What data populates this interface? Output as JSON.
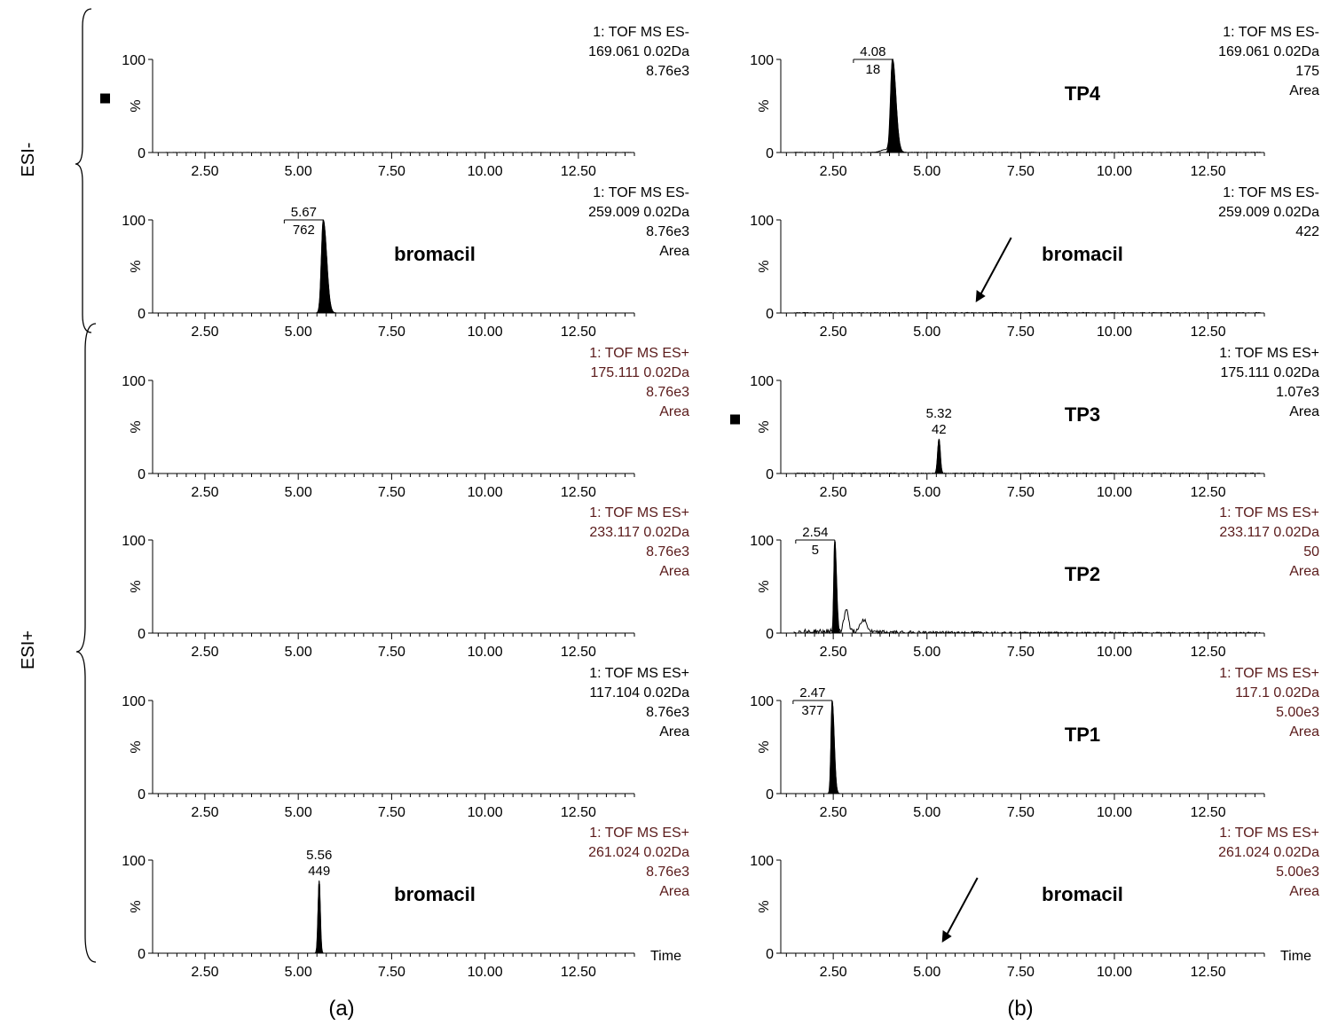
{
  "figure": {
    "panel_labels": [
      "(a)",
      "(b)"
    ],
    "mode_labels": [
      "ESI-",
      "ESI+"
    ]
  },
  "chart_data": [
    {
      "type": "line",
      "panel": "a",
      "row": 0,
      "header": [
        "1: TOF MS ES-",
        "169.061 0.02Da",
        "8.76e3"
      ],
      "header_color": "#000000",
      "ylabel": "%",
      "yticks": [
        "0",
        "100"
      ],
      "xlim": [
        1.1,
        14.0
      ],
      "xticks": [
        2.5,
        5.0,
        7.5,
        10.0,
        12.5
      ],
      "xtick_labels": [
        "2.50",
        "5.00",
        "7.50",
        "10.00",
        "12.50"
      ],
      "peaks": [],
      "noise": 0.2,
      "compound": "",
      "marker": true,
      "arrow": false,
      "time_label": ""
    },
    {
      "type": "line",
      "panel": "a",
      "row": 1,
      "header": [
        "1: TOF MS ES-",
        "259.009 0.02Da",
        "8.76e3",
        "Area"
      ],
      "header_color": "#000000",
      "ylabel": "%",
      "yticks": [
        "0",
        "100"
      ],
      "xlim": [
        1.1,
        14.0
      ],
      "xticks": [
        2.5,
        5.0,
        7.5,
        10.0,
        12.5
      ],
      "xtick_labels": [
        "2.50",
        "5.00",
        "7.50",
        "10.00",
        "12.50"
      ],
      "peaks": [
        {
          "rt": 5.67,
          "height": 100,
          "width": 0.1,
          "tail": true,
          "labels": [
            "5.67",
            "762"
          ],
          "bracket": true
        }
      ],
      "noise": 0,
      "compound": "bromacil",
      "marker": false,
      "arrow": false,
      "time_label": ""
    },
    {
      "type": "line",
      "panel": "a",
      "row": 2,
      "header": [
        "1: TOF MS ES+",
        "175.111 0.02Da",
        "8.76e3",
        "Area"
      ],
      "header_color": "#5a1a1a",
      "ylabel": "%",
      "yticks": [
        "0",
        "100"
      ],
      "xlim": [
        1.1,
        14.0
      ],
      "xticks": [
        2.5,
        5.0,
        7.5,
        10.0,
        12.5
      ],
      "xtick_labels": [
        "2.50",
        "5.00",
        "7.50",
        "10.00",
        "12.50"
      ],
      "peaks": [],
      "noise": 0,
      "compound": "",
      "marker": false,
      "arrow": false,
      "time_label": ""
    },
    {
      "type": "line",
      "panel": "a",
      "row": 3,
      "header": [
        "1: TOF MS ES+",
        "233.117 0.02Da",
        "8.76e3",
        "Area"
      ],
      "header_color": "#5a1a1a",
      "ylabel": "%",
      "yticks": [
        "0",
        "100"
      ],
      "xlim": [
        1.1,
        14.0
      ],
      "xticks": [
        2.5,
        5.0,
        7.5,
        10.0,
        12.5
      ],
      "xtick_labels": [
        "2.50",
        "5.00",
        "7.50",
        "10.00",
        "12.50"
      ],
      "peaks": [],
      "noise": 0,
      "compound": "",
      "marker": false,
      "arrow": false,
      "time_label": ""
    },
    {
      "type": "line",
      "panel": "a",
      "row": 4,
      "header": [
        "1: TOF MS ES+",
        "117.104 0.02Da",
        "8.76e3",
        "Area"
      ],
      "header_color": "#000000",
      "ylabel": "%",
      "yticks": [
        "0",
        "100"
      ],
      "xlim": [
        1.1,
        14.0
      ],
      "xticks": [
        2.5,
        5.0,
        7.5,
        10.0,
        12.5
      ],
      "xtick_labels": [
        "2.50",
        "5.00",
        "7.50",
        "10.00",
        "12.50"
      ],
      "peaks": [],
      "noise": 0,
      "compound": "",
      "marker": false,
      "arrow": false,
      "time_label": ""
    },
    {
      "type": "line",
      "panel": "a",
      "row": 5,
      "header": [
        "1: TOF MS ES+",
        "261.024 0.02Da",
        "8.76e3",
        "Area"
      ],
      "header_color": "#5a1a1a",
      "ylabel": "%",
      "yticks": [
        "0",
        "100"
      ],
      "xlim": [
        1.1,
        14.0
      ],
      "xticks": [
        2.5,
        5.0,
        7.5,
        10.0,
        12.5
      ],
      "xtick_labels": [
        "2.50",
        "5.00",
        "7.50",
        "10.00",
        "12.50"
      ],
      "peaks": [
        {
          "rt": 5.56,
          "height": 78,
          "width": 0.06,
          "tail": false,
          "labels": [
            "5.56",
            "449"
          ],
          "bracket": false
        }
      ],
      "noise": 0,
      "compound": "bromacil",
      "marker": false,
      "arrow": false,
      "time_label": "Time"
    },
    {
      "type": "line",
      "panel": "b",
      "row": 0,
      "header": [
        "1: TOF MS ES-",
        "169.061 0.02Da",
        "175",
        "Area"
      ],
      "header_color": "#000000",
      "ylabel": "%",
      "yticks": [
        "0",
        "100"
      ],
      "xlim": [
        1.1,
        14.0
      ],
      "xticks": [
        2.5,
        5.0,
        7.5,
        10.0,
        12.5
      ],
      "xtick_labels": [
        "2.50",
        "5.00",
        "7.50",
        "10.00",
        "12.50"
      ],
      "peaks": [
        {
          "rt": 4.08,
          "height": 100,
          "width": 0.1,
          "tail": true,
          "labels": [
            "4.08",
            "18"
          ],
          "bracket": true
        },
        {
          "rt": 3.9,
          "height": 3,
          "width": 0.25,
          "tail": false,
          "labels": [],
          "bracket": false
        }
      ],
      "noise": 0.5,
      "compound": "TP4",
      "marker": false,
      "arrow": false,
      "time_label": ""
    },
    {
      "type": "line",
      "panel": "b",
      "row": 1,
      "header": [
        "1: TOF MS ES-",
        "259.009 0.02Da",
        "422"
      ],
      "header_color": "#000000",
      "ylabel": "%",
      "yticks": [
        "0",
        "100"
      ],
      "xlim": [
        1.1,
        14.0
      ],
      "xticks": [
        2.5,
        5.0,
        7.5,
        10.0,
        12.5
      ],
      "xtick_labels": [
        "2.50",
        "5.00",
        "7.50",
        "10.00",
        "12.50"
      ],
      "peaks": [],
      "noise": 0.8,
      "compound": "bromacil",
      "marker": false,
      "arrow": true,
      "arrow_target": 6.3,
      "time_label": ""
    },
    {
      "type": "line",
      "panel": "b",
      "row": 2,
      "header": [
        "1: TOF MS ES+",
        "175.111 0.02Da",
        "1.07e3",
        "Area"
      ],
      "header_color": "#000000",
      "ylabel": "%",
      "yticks": [
        "0",
        "100"
      ],
      "xlim": [
        1.1,
        14.0
      ],
      "xticks": [
        2.5,
        5.0,
        7.5,
        10.0,
        12.5
      ],
      "xtick_labels": [
        "2.50",
        "5.00",
        "7.50",
        "10.00",
        "12.50"
      ],
      "peaks": [
        {
          "rt": 5.32,
          "height": 37,
          "width": 0.07,
          "tail": false,
          "labels": [
            "5.32",
            "42"
          ],
          "bracket": false
        }
      ],
      "noise": 0.8,
      "compound": "TP3",
      "marker": true,
      "arrow": false,
      "time_label": ""
    },
    {
      "type": "line",
      "panel": "b",
      "row": 3,
      "header": [
        "1: TOF MS ES+",
        "233.117 0.02Da",
        "50",
        "Area"
      ],
      "header_color": "#5a1a1a",
      "ylabel": "%",
      "yticks": [
        "0",
        "100"
      ],
      "xlim": [
        1.1,
        14.0
      ],
      "xticks": [
        2.5,
        5.0,
        7.5,
        10.0,
        12.5
      ],
      "xtick_labels": [
        "2.50",
        "5.00",
        "7.50",
        "10.00",
        "12.50"
      ],
      "peaks": [
        {
          "rt": 2.54,
          "height": 100,
          "width": 0.05,
          "tail": true,
          "labels": [
            "2.54",
            "5"
          ],
          "bracket": true
        },
        {
          "rt": 2.85,
          "height": 25,
          "width": 0.12,
          "tail": false,
          "labels": [],
          "bracket": false
        },
        {
          "rt": 3.3,
          "height": 14,
          "width": 0.18,
          "tail": false,
          "labels": [],
          "bracket": false
        }
      ],
      "noise": 5,
      "compound": "TP2",
      "marker": false,
      "arrow": false,
      "time_label": ""
    },
    {
      "type": "line",
      "panel": "b",
      "row": 4,
      "header": [
        "1: TOF MS ES+",
        "117.1 0.02Da",
        "5.00e3",
        "Area"
      ],
      "header_color": "#5a1a1a",
      "ylabel": "%",
      "yticks": [
        "0",
        "100"
      ],
      "xlim": [
        1.1,
        14.0
      ],
      "xticks": [
        2.5,
        5.0,
        7.5,
        10.0,
        12.5
      ],
      "xtick_labels": [
        "2.50",
        "5.00",
        "7.50",
        "10.00",
        "12.50"
      ],
      "peaks": [
        {
          "rt": 2.47,
          "height": 100,
          "width": 0.06,
          "tail": true,
          "labels": [
            "2.47",
            "377"
          ],
          "bracket": true
        }
      ],
      "noise": 0,
      "compound": "TP1",
      "marker": false,
      "arrow": false,
      "time_label": ""
    },
    {
      "type": "line",
      "panel": "b",
      "row": 5,
      "header": [
        "1: TOF MS ES+",
        "261.024 0.02Da",
        "5.00e3",
        "Area"
      ],
      "header_color": "#5a1a1a",
      "ylabel": "%",
      "yticks": [
        "0",
        "100"
      ],
      "xlim": [
        1.1,
        14.0
      ],
      "xticks": [
        2.5,
        5.0,
        7.5,
        10.0,
        12.5
      ],
      "xtick_labels": [
        "2.50",
        "5.00",
        "7.50",
        "10.00",
        "12.50"
      ],
      "peaks": [],
      "noise": 0,
      "compound": "bromacil",
      "marker": false,
      "arrow": true,
      "arrow_target": 5.4,
      "time_label": "Time"
    }
  ]
}
